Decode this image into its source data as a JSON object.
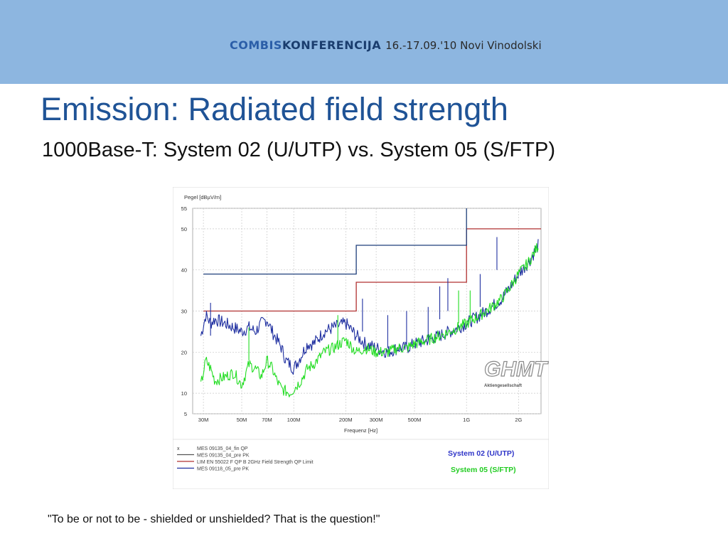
{
  "header": {
    "brand_combis": "COMBIS",
    "brand_konferencija": "KONFERENCIJA",
    "brand_event": "16.-17.09.'10  Novi Vinodolski"
  },
  "slide": {
    "title": "Emission: Radiated field strength",
    "subtitle": "1000Base-T: System 02 (U/UTP) vs. System 05 (S/FTP)",
    "quote": "\"To be or not to be - shielded or unshielded? That is the question!\""
  },
  "colors": {
    "banner": "#8db6e0",
    "title": "#1f5396",
    "system02": "#1f2fa0",
    "system05": "#22dd22",
    "limit_qp": "#b03030",
    "limit_pk": "#1e3f7a"
  },
  "logo": {
    "text": "GHMT",
    "subtext": "Aktiengesellschaft"
  },
  "chart_data": {
    "type": "line",
    "ylabel": "Pegel [dBµV/m]",
    "xlabel": "Frequenz [Hz]",
    "x_scale": "log",
    "xlim_hz": [
      26000000,
      2700000000
    ],
    "ylim": [
      5,
      55
    ],
    "grid": true,
    "y_ticks": [
      {
        "v": 5,
        "label": "5"
      },
      {
        "v": 10,
        "label": "10"
      },
      {
        "v": 20,
        "label": "20"
      },
      {
        "v": 30,
        "label": "30"
      },
      {
        "v": 40,
        "label": "40"
      },
      {
        "v": 50,
        "label": "50"
      },
      {
        "v": 55,
        "label": "55"
      }
    ],
    "x_ticks": [
      {
        "hz": 30000000,
        "label": "30M"
      },
      {
        "hz": 50000000,
        "label": "50M"
      },
      {
        "hz": 70000000,
        "label": "70M"
      },
      {
        "hz": 100000000,
        "label": "100M"
      },
      {
        "hz": 200000000,
        "label": "200M"
      },
      {
        "hz": 300000000,
        "label": "300M"
      },
      {
        "hz": 500000000,
        "label": "500M"
      },
      {
        "hz": 1000000000,
        "label": "1G"
      },
      {
        "hz": 2000000000,
        "label": "2G"
      }
    ],
    "legend": [
      {
        "marker": "x",
        "text": "MES  09135_04_fin QP"
      },
      {
        "marker": "",
        "text": "MES  09135_04_pre PK"
      },
      {
        "marker": "",
        "text": "LIM  EN 55022 F QP B 2GHz  Field Strength QP Limit"
      },
      {
        "marker": "",
        "text": "MES  09118_05_pre PK"
      }
    ],
    "annotations": [
      {
        "text": "System 02 (U/UTP)",
        "color": "#2f35c8"
      },
      {
        "text": "System 05 (S/FTP)",
        "color": "#22cc22"
      }
    ],
    "series": [
      {
        "role": "limit_qp",
        "color": "#b03030",
        "x": [
          30000000,
          230000000,
          230000000,
          1000000000,
          1000000000,
          2700000000
        ],
        "values": [
          30,
          30,
          37,
          37,
          50,
          50
        ]
      },
      {
        "role": "limit_pk",
        "color": "#1e3f7a",
        "x": [
          30000000,
          230000000,
          230000000,
          1000000000,
          1000000000
        ],
        "values": [
          39,
          39,
          46,
          46,
          55
        ]
      },
      {
        "role": "system02",
        "color": "#1f2fa0",
        "x": [
          29000000,
          31000000,
          33000000,
          35000000,
          40000000,
          45000000,
          50000000,
          55000000,
          60000000,
          65000000,
          70000000,
          75000000,
          80000000,
          85000000,
          90000000,
          95000000,
          100000000,
          110000000,
          120000000,
          130000000,
          150000000,
          170000000,
          200000000,
          230000000,
          260000000,
          300000000,
          350000000,
          400000000,
          450000000,
          500000000,
          600000000,
          700000000,
          800000000,
          900000000,
          1000000000,
          1200000000,
          1400000000,
          1600000000,
          1800000000,
          2000000000,
          2300000000,
          2600000000
        ],
        "values": [
          24,
          29,
          27,
          28,
          27,
          26,
          25,
          26,
          25,
          27,
          28,
          25,
          23,
          21,
          18,
          17,
          16,
          19,
          22,
          22,
          25,
          26,
          27,
          24,
          22,
          21,
          20,
          21,
          21,
          22,
          23,
          24,
          25,
          26,
          27,
          29,
          31,
          33,
          36,
          39,
          42,
          46
        ]
      },
      {
        "role": "system05",
        "color": "#22dd22",
        "x": [
          29000000,
          31000000,
          33000000,
          35000000,
          40000000,
          45000000,
          50000000,
          55000000,
          60000000,
          65000000,
          70000000,
          75000000,
          80000000,
          85000000,
          90000000,
          95000000,
          100000000,
          110000000,
          120000000,
          130000000,
          150000000,
          170000000,
          200000000,
          230000000,
          260000000,
          300000000,
          350000000,
          400000000,
          450000000,
          500000000,
          600000000,
          700000000,
          800000000,
          900000000,
          1000000000,
          1200000000,
          1400000000,
          1600000000,
          1800000000,
          2000000000,
          2300000000,
          2600000000
        ],
        "values": [
          12,
          18,
          16,
          13,
          14,
          15,
          12,
          17,
          16,
          14,
          18,
          16,
          13,
          11,
          10.5,
          10,
          11,
          13,
          16,
          17,
          20,
          21,
          23,
          20,
          21,
          20,
          20,
          21,
          21,
          22,
          23,
          24,
          25,
          26,
          27,
          29,
          31,
          33,
          36,
          39,
          42,
          46
        ]
      }
    ],
    "spikes": [
      {
        "hz": 33000000,
        "value": 32,
        "series": "system02"
      },
      {
        "hz": 55000000,
        "value": 26,
        "series": "system05"
      },
      {
        "hz": 180000000,
        "value": 29,
        "series": "system05"
      },
      {
        "hz": 250000000,
        "value": 33,
        "series": "system02"
      },
      {
        "hz": 350000000,
        "value": 29,
        "series": "system02"
      },
      {
        "hz": 450000000,
        "value": 30,
        "series": "system02"
      },
      {
        "hz": 600000000,
        "value": 31,
        "series": "system02"
      },
      {
        "hz": 700000000,
        "value": 36,
        "series": "system02"
      },
      {
        "hz": 780000000,
        "value": 38,
        "series": "system02"
      },
      {
        "hz": 900000000,
        "value": 35,
        "series": "system05"
      },
      {
        "hz": 1050000000,
        "value": 35,
        "series": "system05"
      },
      {
        "hz": 1200000000,
        "value": 39,
        "series": "system02"
      },
      {
        "hz": 1500000000,
        "value": 48,
        "series": "system02"
      }
    ]
  }
}
